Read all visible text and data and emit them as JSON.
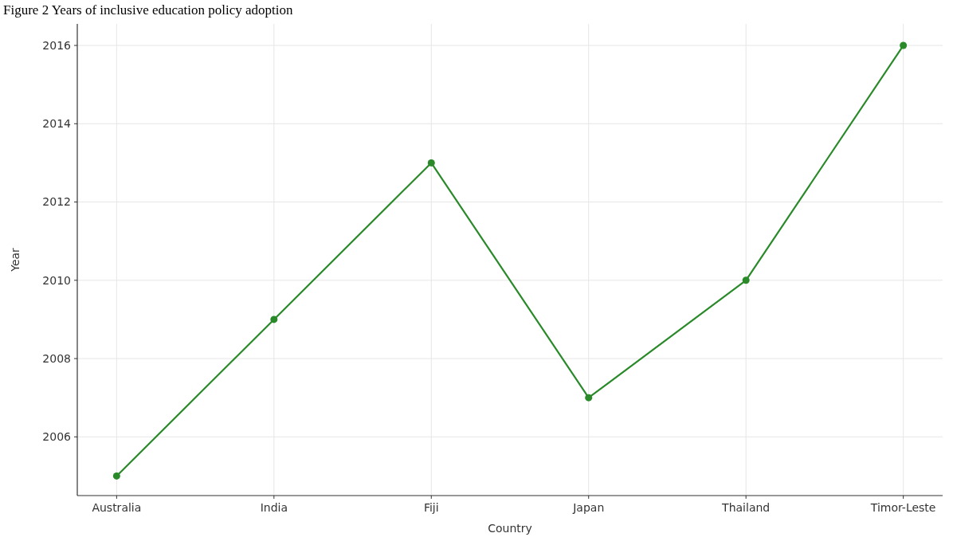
{
  "chart_data": {
    "type": "line",
    "title": "Figure 2 Years of inclusive education policy adoption",
    "xlabel": "Country",
    "ylabel": "Year",
    "categories": [
      "Australia",
      "India",
      "Fiji",
      "Japan",
      "Thailand",
      "Timor-Leste"
    ],
    "series": [
      {
        "color": "#2a8a2a",
        "values": [
          2005,
          2009,
          2013,
          2007,
          2010,
          2016
        ]
      }
    ],
    "ylim": [
      2004.5,
      2016.55
    ],
    "yticks": [
      2006,
      2008,
      2010,
      2012,
      2014,
      2016
    ],
    "grid": true,
    "marker": "circle"
  }
}
